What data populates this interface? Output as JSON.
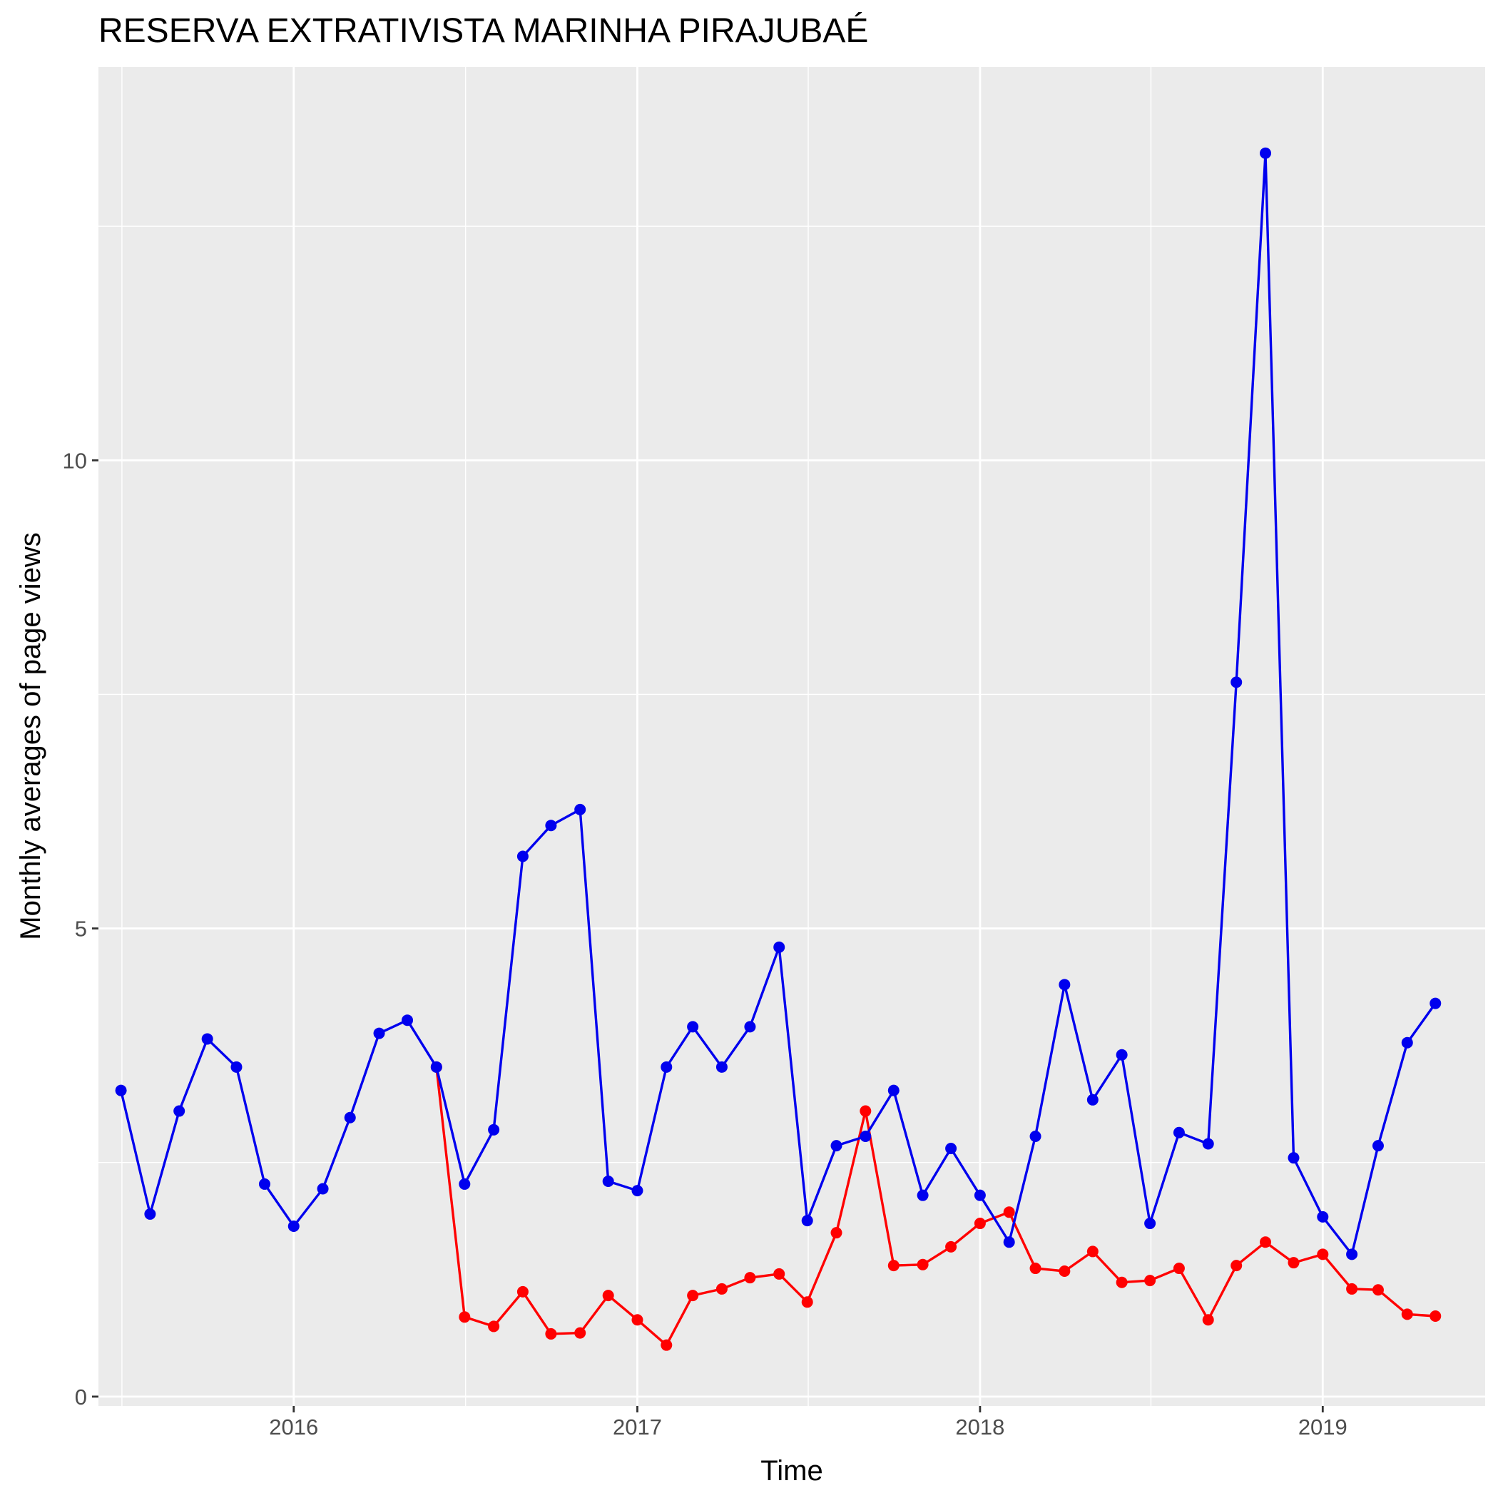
{
  "chart_data": {
    "type": "line",
    "title": "RESERVA EXTRATIVISTA MARINHA PIRAJUBAÉ",
    "xlabel": "Time",
    "ylabel": "Monthly averages of page views",
    "x_ticks": [
      "2016",
      "2017",
      "2018",
      "2019"
    ],
    "y_ticks": [
      "0",
      "5",
      "10"
    ],
    "xlim": [
      "2015-06-07",
      "2019-06-23"
    ],
    "ylim": [
      -0.1,
      14.2
    ],
    "grid": true,
    "legend": "none",
    "series": [
      {
        "color": "#0000ee",
        "x": [
          "2015-07-01",
          "2015-08-01",
          "2015-09-01",
          "2015-10-01",
          "2015-11-01",
          "2015-12-01",
          "2016-01-01",
          "2016-02-01",
          "2016-03-01",
          "2016-04-01",
          "2016-05-01",
          "2016-06-01",
          "2016-07-01",
          "2016-08-01",
          "2016-09-01",
          "2016-10-01",
          "2016-11-01",
          "2016-12-01",
          "2017-01-01",
          "2017-02-01",
          "2017-03-01",
          "2017-04-01",
          "2017-05-01",
          "2017-06-01",
          "2017-07-01",
          "2017-08-01",
          "2017-09-01",
          "2017-10-01",
          "2017-11-01",
          "2017-12-01",
          "2018-01-01",
          "2018-02-01",
          "2018-03-01",
          "2018-04-01",
          "2018-05-01",
          "2018-06-01",
          "2018-07-01",
          "2018-08-01",
          "2018-09-01",
          "2018-10-01",
          "2018-11-01",
          "2018-12-01",
          "2019-01-01",
          "2019-02-01",
          "2019-03-01",
          "2019-04-01",
          "2019-05-01"
        ],
        "values": [
          3.27,
          1.95,
          3.05,
          3.82,
          3.52,
          2.27,
          1.82,
          2.22,
          2.98,
          3.88,
          4.02,
          3.52,
          2.27,
          2.85,
          5.77,
          6.1,
          6.27,
          2.3,
          2.2,
          3.52,
          3.95,
          3.52,
          3.95,
          4.8,
          1.88,
          2.68,
          2.78,
          3.27,
          2.15,
          2.65,
          2.15,
          1.65,
          2.78,
          4.4,
          3.17,
          3.65,
          1.85,
          2.82,
          2.7,
          7.63,
          13.28,
          2.55,
          1.92,
          1.52,
          2.68,
          3.78,
          4.2
        ]
      },
      {
        "color": "#ff0000",
        "x": [
          "2016-06-01",
          "2016-07-01",
          "2016-08-01",
          "2016-09-01",
          "2016-10-01",
          "2016-11-01",
          "2016-12-01",
          "2017-01-01",
          "2017-02-01",
          "2017-03-01",
          "2017-04-01",
          "2017-05-01",
          "2017-06-01",
          "2017-07-01",
          "2017-08-01",
          "2017-09-01",
          "2017-10-01",
          "2017-11-01",
          "2017-12-01",
          "2018-01-01",
          "2018-02-01",
          "2018-03-01",
          "2018-04-01",
          "2018-05-01",
          "2018-06-01",
          "2018-07-01",
          "2018-08-01",
          "2018-09-01",
          "2018-10-01",
          "2018-11-01",
          "2018-12-01",
          "2019-01-01",
          "2019-02-01",
          "2019-03-01",
          "2019-04-01",
          "2019-05-01"
        ],
        "values": [
          3.52,
          0.85,
          0.75,
          1.12,
          0.67,
          0.68,
          1.08,
          0.82,
          0.55,
          1.08,
          1.15,
          1.27,
          1.31,
          1.01,
          1.75,
          3.05,
          1.4,
          1.41,
          1.6,
          1.85,
          1.97,
          1.37,
          1.34,
          1.55,
          1.22,
          1.24,
          1.37,
          0.82,
          1.4,
          1.65,
          1.43,
          1.52,
          1.15,
          1.14,
          0.88,
          0.86
        ]
      }
    ]
  }
}
